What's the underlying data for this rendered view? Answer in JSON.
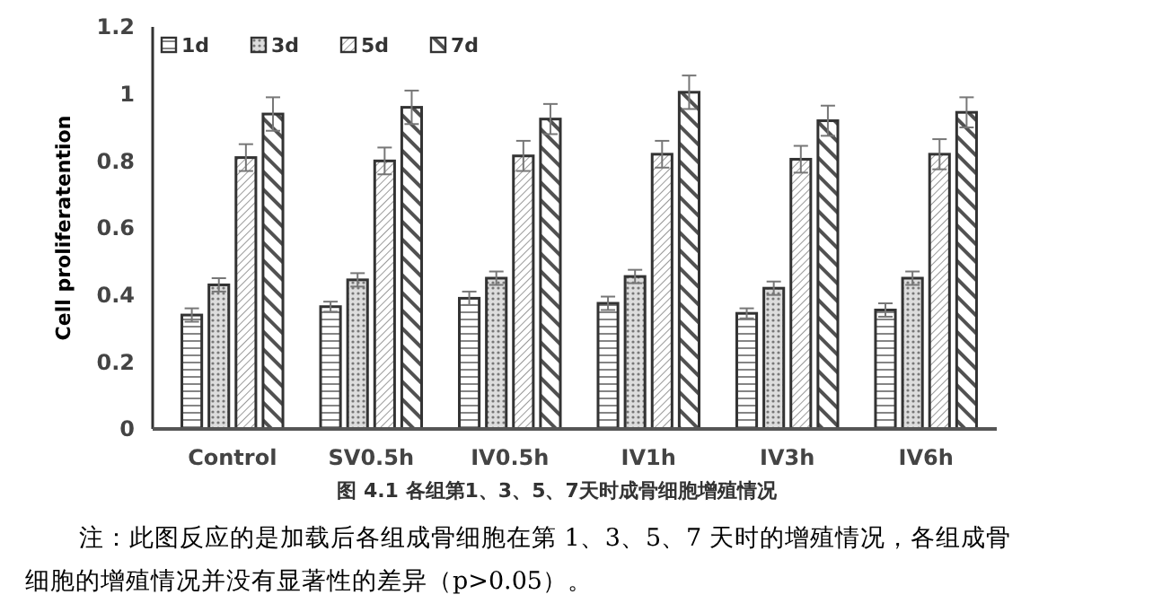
{
  "chart_data": {
    "type": "bar",
    "ylabel": "Cell proliferatention",
    "categories": [
      "Control",
      "SV0.5h",
      "IV0.5h",
      "IV1h",
      "IV3h",
      "IV6h"
    ],
    "series": [
      {
        "name": "1d",
        "color": "#333333",
        "values": [
          0.34,
          0.365,
          0.39,
          0.375,
          0.345,
          0.355
        ],
        "errors": [
          0.02,
          0.015,
          0.02,
          0.02,
          0.015,
          0.02
        ]
      },
      {
        "name": "3d",
        "color": "#333333",
        "values": [
          0.43,
          0.445,
          0.45,
          0.455,
          0.42,
          0.45
        ],
        "errors": [
          0.02,
          0.02,
          0.02,
          0.02,
          0.02,
          0.02
        ]
      },
      {
        "name": "5d",
        "color": "#333333",
        "values": [
          0.81,
          0.8,
          0.815,
          0.82,
          0.805,
          0.82
        ],
        "errors": [
          0.04,
          0.04,
          0.045,
          0.04,
          0.04,
          0.045
        ]
      },
      {
        "name": "7d",
        "color": "#333333",
        "values": [
          0.94,
          0.96,
          0.925,
          1.005,
          0.92,
          0.945
        ],
        "errors": [
          0.05,
          0.05,
          0.045,
          0.05,
          0.045,
          0.045
        ]
      }
    ],
    "ylim": [
      0,
      1.2
    ],
    "yticks": [
      0,
      0.2,
      0.4,
      0.6,
      0.8,
      1,
      1.2
    ],
    "grid": false,
    "legend": "top left",
    "annotations": [
      "图 4.1 各组第1、3、5、7天时成骨细胞增殖情况",
      "注：此图反应的是加载后各组成骨细胞在第 1、3、5、7 天时的增殖情况，各组成骨细胞的增殖情况并没有显著性的差异（p>0.05）。"
    ]
  }
}
